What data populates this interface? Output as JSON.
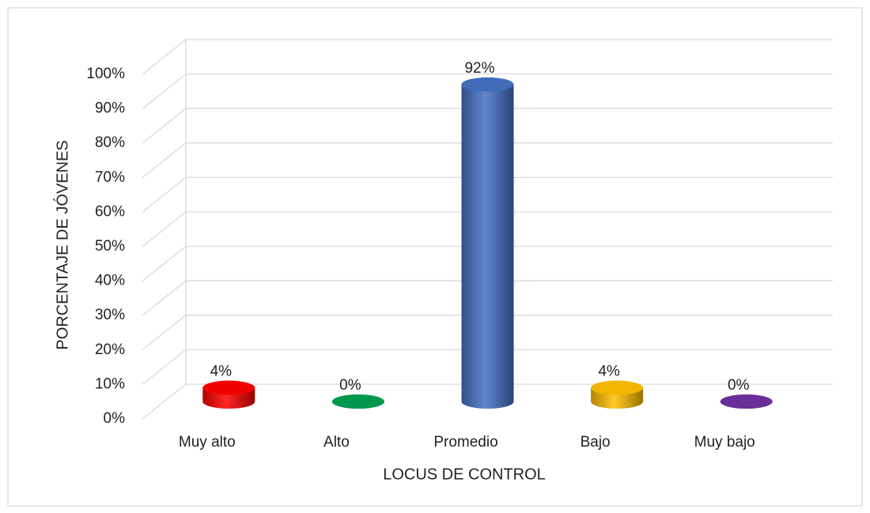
{
  "chart_data": {
    "type": "bar3d",
    "xlabel": "LOCUS DE CONTROL",
    "ylabel": "PORCENTAJE DE JÓVENES",
    "categories": [
      "Muy alto",
      "Alto",
      "Promedio",
      "Bajo",
      "Muy bajo"
    ],
    "values": [
      4,
      0,
      92,
      4,
      0
    ],
    "value_labels": [
      "4%",
      "0%",
      "92%",
      "4%",
      "0%"
    ],
    "colors": [
      "#ff0000",
      "#00a050",
      "#4472c4",
      "#ffc000",
      "#7030a0"
    ],
    "ylim": [
      0,
      100
    ],
    "yticks": [
      {
        "value": 0,
        "label": "0%"
      },
      {
        "value": 10,
        "label": "10%"
      },
      {
        "value": 20,
        "label": "20%"
      },
      {
        "value": 30,
        "label": "30%"
      },
      {
        "value": 40,
        "label": "40%"
      },
      {
        "value": 50,
        "label": "50%"
      },
      {
        "value": 60,
        "label": "60%"
      },
      {
        "value": 70,
        "label": "70%"
      },
      {
        "value": 80,
        "label": "80%"
      },
      {
        "value": 90,
        "label": "90%"
      },
      {
        "value": 100,
        "label": "100%"
      }
    ],
    "grid": true
  }
}
